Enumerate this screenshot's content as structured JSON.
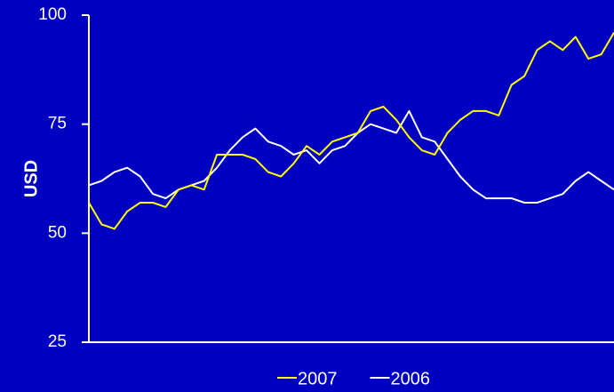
{
  "chart_data": {
    "type": "line",
    "y_label": "USD",
    "background": "#0000c0",
    "axis_color": "#ffffff",
    "categories": [
      null,
      null,
      null,
      null,
      null,
      null,
      null,
      null,
      null,
      null,
      null,
      null,
      null,
      null,
      null,
      null,
      null,
      null,
      null,
      null,
      null,
      null,
      null,
      null,
      null,
      null,
      null,
      null,
      null,
      null,
      null,
      null,
      null,
      null,
      null,
      null,
      null,
      null,
      null,
      null,
      null,
      null
    ],
    "series": [
      {
        "name": "2007",
        "color": "#ffff00",
        "values": [
          57,
          52,
          51,
          55,
          57,
          57,
          56,
          60,
          61,
          60,
          68,
          68,
          68,
          67,
          64,
          63,
          66,
          70,
          68,
          71,
          72,
          73,
          78,
          79,
          76,
          72,
          69,
          68,
          73,
          76,
          78,
          78,
          77,
          84,
          86,
          92,
          94,
          92,
          95,
          90,
          91,
          96
        ]
      },
      {
        "name": "2006",
        "color": "#ffffff",
        "values": [
          61,
          62,
          64,
          65,
          63,
          59,
          58,
          60,
          61,
          62,
          65,
          69,
          72,
          74,
          71,
          70,
          68,
          69,
          66,
          69,
          70,
          73,
          75,
          74,
          73,
          78,
          72,
          71,
          67,
          63,
          60,
          58,
          58,
          58,
          57,
          57,
          58,
          59,
          62,
          64,
          62,
          60
        ]
      }
    ],
    "ylim": [
      25,
      100
    ],
    "yticks": [
      25,
      50,
      75,
      100
    ],
    "grid": false,
    "legend": "bottom"
  }
}
